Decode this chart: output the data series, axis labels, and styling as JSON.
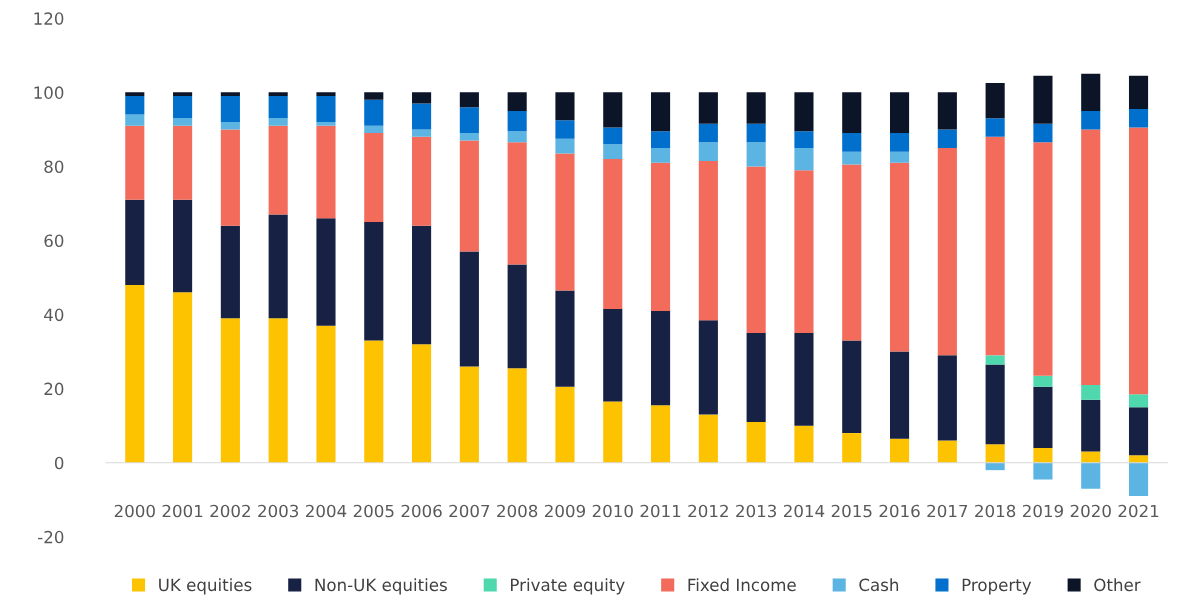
{
  "chart_data": {
    "type": "bar",
    "stacked": true,
    "categories": [
      "2000",
      "2001",
      "2002",
      "2003",
      "2004",
      "2005",
      "2006",
      "2007",
      "2008",
      "2009",
      "2010",
      "2011",
      "2012",
      "2013",
      "2014",
      "2015",
      "2016",
      "2017",
      "2018",
      "2019",
      "2020",
      "2021"
    ],
    "series": [
      {
        "name": "UK equities",
        "color": "#fdc300",
        "values": [
          48,
          46,
          39,
          39,
          37,
          33,
          32,
          26,
          25.5,
          20.5,
          16.5,
          15.5,
          13,
          11,
          10,
          8,
          6.5,
          6,
          5,
          4,
          3,
          2
        ]
      },
      {
        "name": "Non-UK equities",
        "color": "#172144",
        "values": [
          23,
          25,
          25,
          28,
          29,
          32,
          32,
          31,
          28,
          26,
          25,
          25.5,
          25.5,
          24,
          25,
          25,
          23.5,
          23,
          21.5,
          16.5,
          14,
          13
        ]
      },
      {
        "name": "Private equity",
        "color": "#4fd8ae",
        "values": [
          null,
          null,
          null,
          null,
          null,
          null,
          null,
          null,
          null,
          null,
          null,
          null,
          null,
          null,
          null,
          null,
          null,
          null,
          2.5,
          3,
          4,
          3.5
        ]
      },
      {
        "name": "Fixed Income",
        "color": "#f26b5b",
        "values": [
          20,
          20,
          26,
          24,
          25,
          24,
          24,
          30,
          33,
          37,
          40.5,
          40,
          43,
          45,
          44,
          47.5,
          51,
          56,
          59,
          63,
          69,
          72
        ]
      },
      {
        "name": "Cash",
        "color": "#5cb4e2",
        "values": [
          3,
          2,
          2,
          2,
          1,
          2,
          2,
          2,
          3,
          4,
          4,
          4,
          5,
          6.5,
          6,
          3.5,
          3,
          null,
          -2,
          -4.5,
          -7,
          -9
        ]
      },
      {
        "name": "Property",
        "color": "#0070cc",
        "values": [
          5,
          6,
          7,
          6,
          7,
          7,
          7,
          7,
          5.5,
          5,
          4.5,
          4.5,
          5,
          5,
          4.5,
          5,
          5,
          5,
          5,
          5,
          5,
          5
        ]
      },
      {
        "name": "Other",
        "color": "#0c1428",
        "values": [
          1,
          1,
          1,
          1,
          1,
          2,
          3,
          4,
          5,
          7.5,
          9.5,
          10.5,
          8.5,
          8.5,
          10.5,
          11,
          11,
          10,
          9.5,
          13,
          10,
          9
        ]
      }
    ],
    "ylim": [
      -20,
      120
    ],
    "yticks": [
      -20,
      0,
      20,
      40,
      60,
      80,
      100,
      120
    ],
    "legend": "bottom"
  }
}
